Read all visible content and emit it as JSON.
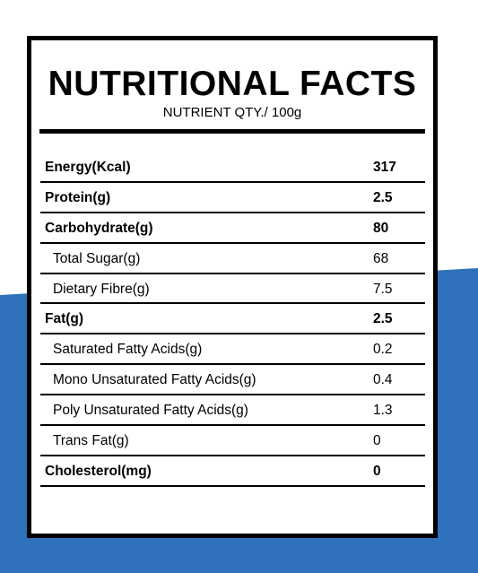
{
  "colors": {
    "accent_blue": "#2f72bb",
    "border": "#000000",
    "panel": "#ffffff"
  },
  "panel": {
    "title": "NUTRITIONAL FACTS",
    "subtitle": "NUTRIENT QTY./ 100g"
  },
  "rows": [
    {
      "name": "Energy(Kcal)",
      "qty": "317",
      "bold": true
    },
    {
      "name": "Protein(g)",
      "qty": "2.5",
      "bold": true
    },
    {
      "name": "Carbohydrate(g)",
      "qty": "80",
      "bold": true
    },
    {
      "name": "Total Sugar(g)",
      "qty": "68",
      "bold": false
    },
    {
      "name": "Dietary Fibre(g)",
      "qty": "7.5",
      "bold": false
    },
    {
      "name": "Fat(g)",
      "qty": "2.5",
      "bold": true
    },
    {
      "name": "Saturated Fatty Acids(g)",
      "qty": "0.2",
      "bold": false
    },
    {
      "name": "Mono Unsaturated Fatty Acids(g)",
      "qty": "0.4",
      "bold": false
    },
    {
      "name": "Poly Unsaturated Fatty Acids(g)",
      "qty": "1.3",
      "bold": false
    },
    {
      "name": "Trans Fat(g)",
      "qty": "0",
      "bold": false
    },
    {
      "name": "Cholesterol(mg)",
      "qty": "0",
      "bold": true
    }
  ]
}
